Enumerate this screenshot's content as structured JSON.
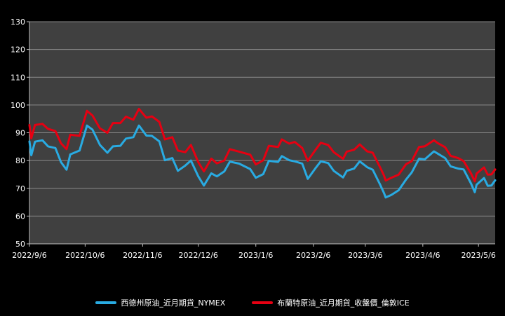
{
  "chart_data": {
    "type": "line",
    "title": "",
    "xlabel": "",
    "ylabel": "",
    "ylim": [
      50,
      130
    ],
    "yticks": [
      "50",
      "60",
      "70",
      "80",
      "90",
      "100",
      "110",
      "120",
      "130"
    ],
    "xlim": [
      "2022-09-06",
      "2023-05-15"
    ],
    "xticks": [
      {
        "date": "2022-09-06",
        "label": "2022/9/6"
      },
      {
        "date": "2022-10-06",
        "label": "2022/10/6"
      },
      {
        "date": "2022-11-06",
        "label": "2022/11/6"
      },
      {
        "date": "2022-12-06",
        "label": "2022/12/6"
      },
      {
        "date": "2023-01-06",
        "label": "2023/1/6"
      },
      {
        "date": "2023-02-06",
        "label": "2023/2/6"
      },
      {
        "date": "2023-03-06",
        "label": "2023/3/6"
      },
      {
        "date": "2023-04-06",
        "label": "2023/4/6"
      },
      {
        "date": "2023-05-06",
        "label": "2023/5/6"
      }
    ],
    "grid": true,
    "legend_position": "bottom",
    "plot_background": "#404040",
    "series": [
      {
        "name": "西德州原油_近月期貨_NYMEX",
        "color": "#29ABE2",
        "points": [
          [
            "2022-09-06",
            86.9
          ],
          [
            "2022-09-07",
            81.9
          ],
          [
            "2022-09-09",
            86.8
          ],
          [
            "2022-09-13",
            87.3
          ],
          [
            "2022-09-16",
            85.1
          ],
          [
            "2022-09-20",
            84.5
          ],
          [
            "2022-09-23",
            79.4
          ],
          [
            "2022-09-26",
            76.7
          ],
          [
            "2022-09-28",
            82.2
          ],
          [
            "2022-10-03",
            83.6
          ],
          [
            "2022-10-07",
            92.6
          ],
          [
            "2022-10-10",
            91.1
          ],
          [
            "2022-10-14",
            85.6
          ],
          [
            "2022-10-18",
            82.8
          ],
          [
            "2022-10-21",
            85.1
          ],
          [
            "2022-10-25",
            85.3
          ],
          [
            "2022-10-28",
            87.9
          ],
          [
            "2022-11-01",
            88.4
          ],
          [
            "2022-11-04",
            92.6
          ],
          [
            "2022-11-08",
            89.0
          ],
          [
            "2022-11-11",
            88.9
          ],
          [
            "2022-11-15",
            86.9
          ],
          [
            "2022-11-18",
            80.1
          ],
          [
            "2022-11-22",
            80.9
          ],
          [
            "2022-11-25",
            76.3
          ],
          [
            "2022-11-29",
            78.2
          ],
          [
            "2022-12-02",
            80.0
          ],
          [
            "2022-12-06",
            74.3
          ],
          [
            "2022-12-09",
            71.0
          ],
          [
            "2022-12-13",
            75.4
          ],
          [
            "2022-12-16",
            74.3
          ],
          [
            "2022-12-20",
            76.1
          ],
          [
            "2022-12-23",
            79.6
          ],
          [
            "2022-12-28",
            78.9
          ],
          [
            "2023-01-03",
            76.9
          ],
          [
            "2023-01-06",
            73.8
          ],
          [
            "2023-01-10",
            75.1
          ],
          [
            "2023-01-13",
            79.9
          ],
          [
            "2023-01-18",
            79.5
          ],
          [
            "2023-01-20",
            81.6
          ],
          [
            "2023-01-24",
            80.1
          ],
          [
            "2023-01-27",
            79.7
          ],
          [
            "2023-01-31",
            78.9
          ],
          [
            "2023-02-03",
            73.4
          ],
          [
            "2023-02-07",
            77.1
          ],
          [
            "2023-02-10",
            79.7
          ],
          [
            "2023-02-14",
            79.1
          ],
          [
            "2023-02-17",
            76.3
          ],
          [
            "2023-02-22",
            73.9
          ],
          [
            "2023-02-24",
            76.3
          ],
          [
            "2023-02-28",
            77.1
          ],
          [
            "2023-03-03",
            79.7
          ],
          [
            "2023-03-07",
            77.6
          ],
          [
            "2023-03-10",
            76.7
          ],
          [
            "2023-03-14",
            71.3
          ],
          [
            "2023-03-16",
            68.4
          ],
          [
            "2023-03-17",
            66.7
          ],
          [
            "2023-03-20",
            67.6
          ],
          [
            "2023-03-24",
            69.3
          ],
          [
            "2023-03-28",
            73.2
          ],
          [
            "2023-03-31",
            75.7
          ],
          [
            "2023-04-04",
            80.7
          ],
          [
            "2023-04-07",
            80.4
          ],
          [
            "2023-04-12",
            83.3
          ],
          [
            "2023-04-14",
            82.5
          ],
          [
            "2023-04-18",
            80.9
          ],
          [
            "2023-04-21",
            77.9
          ],
          [
            "2023-04-25",
            77.1
          ],
          [
            "2023-04-28",
            76.8
          ],
          [
            "2023-05-02",
            71.7
          ],
          [
            "2023-05-04",
            68.6
          ],
          [
            "2023-05-05",
            71.3
          ],
          [
            "2023-05-09",
            73.7
          ],
          [
            "2023-05-11",
            70.9
          ],
          [
            "2023-05-13",
            71.0
          ],
          [
            "2023-05-15",
            72.9
          ]
        ]
      },
      {
        "name": "布蘭特原油_近月期貨_收盤價_倫敦ICE",
        "color": "#E60012",
        "points": [
          [
            "2022-09-06",
            92.8
          ],
          [
            "2022-09-07",
            88.0
          ],
          [
            "2022-09-09",
            92.8
          ],
          [
            "2022-09-13",
            93.2
          ],
          [
            "2022-09-16",
            91.4
          ],
          [
            "2022-09-20",
            90.6
          ],
          [
            "2022-09-23",
            86.2
          ],
          [
            "2022-09-26",
            84.1
          ],
          [
            "2022-09-28",
            89.3
          ],
          [
            "2022-10-03",
            88.9
          ],
          [
            "2022-10-07",
            97.9
          ],
          [
            "2022-10-10",
            96.2
          ],
          [
            "2022-10-14",
            91.6
          ],
          [
            "2022-10-18",
            90.0
          ],
          [
            "2022-10-21",
            93.5
          ],
          [
            "2022-10-25",
            93.5
          ],
          [
            "2022-10-28",
            95.8
          ],
          [
            "2022-11-01",
            94.7
          ],
          [
            "2022-11-04",
            98.6
          ],
          [
            "2022-11-08",
            95.4
          ],
          [
            "2022-11-11",
            95.9
          ],
          [
            "2022-11-15",
            93.9
          ],
          [
            "2022-11-18",
            87.6
          ],
          [
            "2022-11-22",
            88.4
          ],
          [
            "2022-11-25",
            83.6
          ],
          [
            "2022-11-29",
            83.0
          ],
          [
            "2022-12-02",
            85.6
          ],
          [
            "2022-12-06",
            79.4
          ],
          [
            "2022-12-09",
            76.1
          ],
          [
            "2022-12-13",
            80.7
          ],
          [
            "2022-12-16",
            79.0
          ],
          [
            "2022-12-20",
            80.0
          ],
          [
            "2022-12-23",
            84.1
          ],
          [
            "2022-12-28",
            83.2
          ],
          [
            "2023-01-03",
            82.1
          ],
          [
            "2023-01-06",
            78.6
          ],
          [
            "2023-01-10",
            80.1
          ],
          [
            "2023-01-13",
            85.3
          ],
          [
            "2023-01-18",
            84.9
          ],
          [
            "2023-01-20",
            87.6
          ],
          [
            "2023-01-24",
            86.1
          ],
          [
            "2023-01-27",
            86.7
          ],
          [
            "2023-01-31",
            84.5
          ],
          [
            "2023-02-03",
            79.9
          ],
          [
            "2023-02-07",
            83.7
          ],
          [
            "2023-02-10",
            86.4
          ],
          [
            "2023-02-14",
            85.6
          ],
          [
            "2023-02-17",
            83.0
          ],
          [
            "2023-02-22",
            80.6
          ],
          [
            "2023-02-24",
            83.2
          ],
          [
            "2023-02-28",
            83.9
          ],
          [
            "2023-03-03",
            85.8
          ],
          [
            "2023-03-07",
            83.3
          ],
          [
            "2023-03-10",
            82.8
          ],
          [
            "2023-03-14",
            77.5
          ],
          [
            "2023-03-16",
            74.7
          ],
          [
            "2023-03-17",
            72.8
          ],
          [
            "2023-03-20",
            73.8
          ],
          [
            "2023-03-24",
            74.9
          ],
          [
            "2023-03-28",
            78.7
          ],
          [
            "2023-03-31",
            79.8
          ],
          [
            "2023-04-04",
            84.9
          ],
          [
            "2023-04-07",
            85.1
          ],
          [
            "2023-04-12",
            87.3
          ],
          [
            "2023-04-14",
            86.3
          ],
          [
            "2023-04-18",
            84.8
          ],
          [
            "2023-04-21",
            81.7
          ],
          [
            "2023-04-25",
            80.9
          ],
          [
            "2023-04-28",
            79.8
          ],
          [
            "2023-05-02",
            75.3
          ],
          [
            "2023-05-04",
            72.5
          ],
          [
            "2023-05-05",
            75.3
          ],
          [
            "2023-05-09",
            77.5
          ],
          [
            "2023-05-11",
            74.9
          ],
          [
            "2023-05-13",
            75.0
          ],
          [
            "2023-05-15",
            76.8
          ]
        ]
      }
    ]
  }
}
